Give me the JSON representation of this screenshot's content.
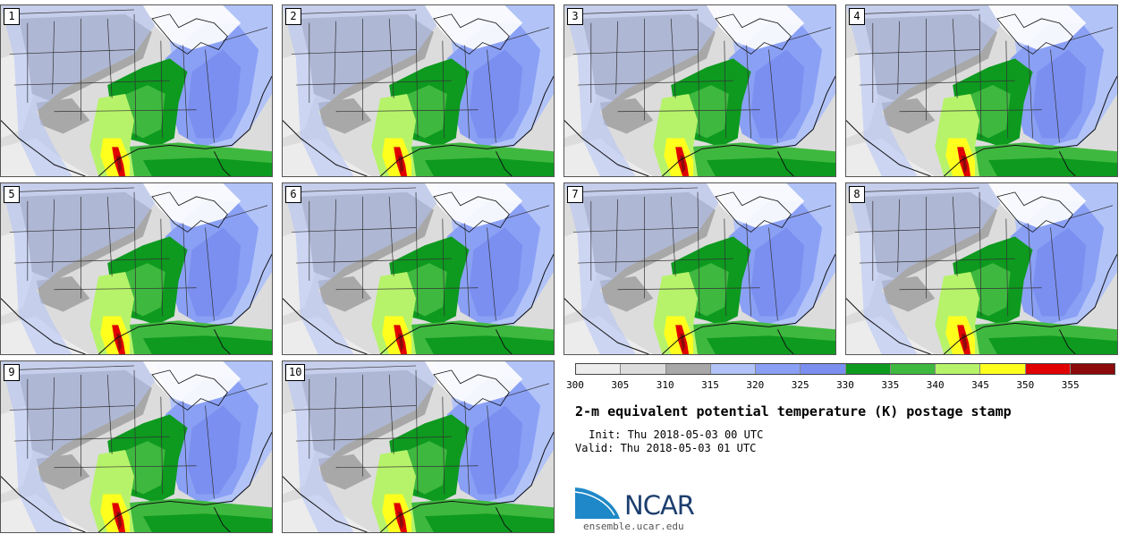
{
  "panels": [
    {
      "label": "1"
    },
    {
      "label": "2"
    },
    {
      "label": "3"
    },
    {
      "label": "4"
    },
    {
      "label": "5"
    },
    {
      "label": "6"
    },
    {
      "label": "7"
    },
    {
      "label": "8"
    },
    {
      "label": "9"
    },
    {
      "label": "10"
    }
  ],
  "colorbar": {
    "colors": [
      "#ececec",
      "#dcdcdc",
      "#a8a8a8",
      "#b2c3f8",
      "#8aa0f5",
      "#7b8ff0",
      "#0d9a1f",
      "#3fb83f",
      "#b6f36a",
      "#ffff1e",
      "#e00000",
      "#8c0a0a"
    ],
    "ticks": [
      "300",
      "305",
      "310",
      "315",
      "320",
      "325",
      "330",
      "335",
      "340",
      "345",
      "350",
      "355"
    ]
  },
  "title": "2-m equivalent potential temperature (K) postage stamp",
  "init": " Init: Thu 2018-05-03 00 UTC",
  "valid": "Valid: Thu 2018-05-03 01 UTC",
  "logo": {
    "text": "NCAR",
    "url": "ensemble.ucar.edu",
    "icon": "ncar-swoosh-icon",
    "color": "#1c3e6e"
  }
}
